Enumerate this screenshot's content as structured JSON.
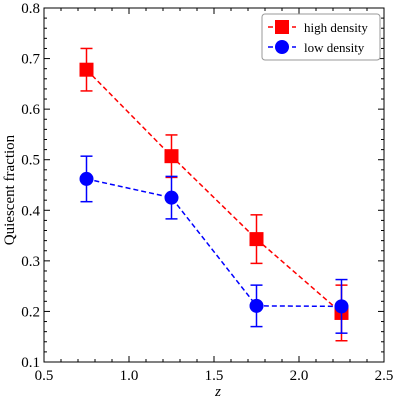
{
  "chart_data": {
    "type": "line",
    "xlabel": "z",
    "ylabel": "Quiescent fraction",
    "xlim": [
      0.5,
      2.5
    ],
    "ylim": [
      0.1,
      0.8
    ],
    "x_ticks": [
      0.5,
      1.0,
      1.5,
      2.0,
      2.5
    ],
    "x_tick_labels": [
      "0.5",
      "1.0",
      "1.5",
      "2.0",
      "2.5"
    ],
    "y_ticks": [
      0.1,
      0.2,
      0.3,
      0.4,
      0.5,
      0.6,
      0.7,
      0.8
    ],
    "y_tick_labels": [
      "0.1",
      "0.2",
      "0.3",
      "0.4",
      "0.5",
      "0.6",
      "0.7",
      "0.8"
    ],
    "grid": false,
    "legend_position": "top-right",
    "series": [
      {
        "name": "high density",
        "color": "#ff0000",
        "marker": "square",
        "line_style": "dashed",
        "x": [
          0.75,
          1.25,
          1.75,
          2.25
        ],
        "y": [
          0.678,
          0.507,
          0.343,
          0.197
        ],
        "err_low": [
          0.042,
          0.042,
          0.048,
          0.055
        ],
        "err_high": [
          0.042,
          0.042,
          0.048,
          0.055
        ]
      },
      {
        "name": "low density",
        "color": "#0000ff",
        "marker": "circle",
        "line_style": "dashed",
        "x": [
          0.75,
          1.25,
          1.75,
          2.25
        ],
        "y": [
          0.462,
          0.425,
          0.211,
          0.21
        ],
        "err_low": [
          0.045,
          0.042,
          0.041,
          0.053
        ],
        "err_high": [
          0.045,
          0.042,
          0.041,
          0.053
        ]
      }
    ]
  }
}
